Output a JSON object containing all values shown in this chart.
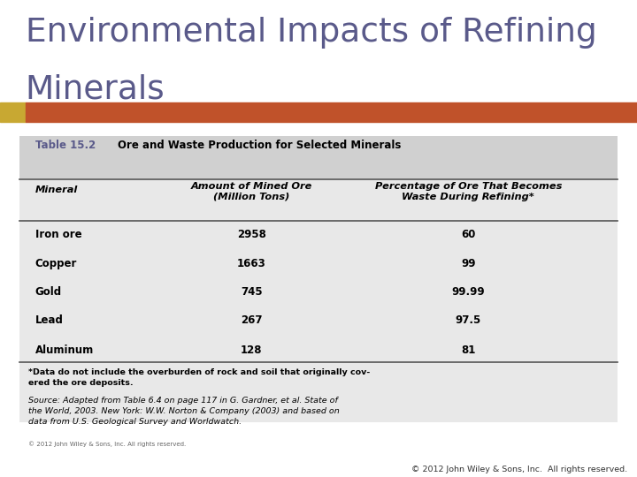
{
  "title_line1": "Environmental Impacts of Refining",
  "title_line2": "Minerals",
  "title_color": "#5a5a8a",
  "accent_bar_color_gold": "#c8a832",
  "accent_bar_color_rust": "#c0522a",
  "table_title_label": "Table 15.2",
  "table_title_label_color": "#5a5a8a",
  "table_title_text": "Ore and Waste Production for Selected Minerals",
  "table_bg_color": "#e8e8e8",
  "table_header_bg_color": "#d0d0d0",
  "minerals": [
    "Iron ore",
    "Copper",
    "Gold",
    "Lead",
    "Aluminum"
  ],
  "mined_ore": [
    "2958",
    "1663",
    "745",
    "267",
    "128"
  ],
  "waste_pct": [
    "60",
    "99",
    "99.99",
    "97.5",
    "81"
  ],
  "footnote1": "*Data do not include the overburden of rock and soil that originally cov-\nered the ore deposits.",
  "footnote2_normal": "Source: ",
  "footnote2_italic": "Adapted from Table 6.4 on page 117 in G. Gardner, et al. State of\nthe World,",
  "footnote2_end": " 2003. New York: W.W. Norton & Company (2003) and based on\ndata from U.S. Geological Survey and Worldwatch.",
  "copyright_small": "© 2012 John Wiley & Sons, Inc. All rights reserved.",
  "copyright_bottom": "© 2012 John Wiley & Sons, Inc.  All rights reserved.",
  "line_color": "#555555",
  "bg_color": "#ffffff"
}
